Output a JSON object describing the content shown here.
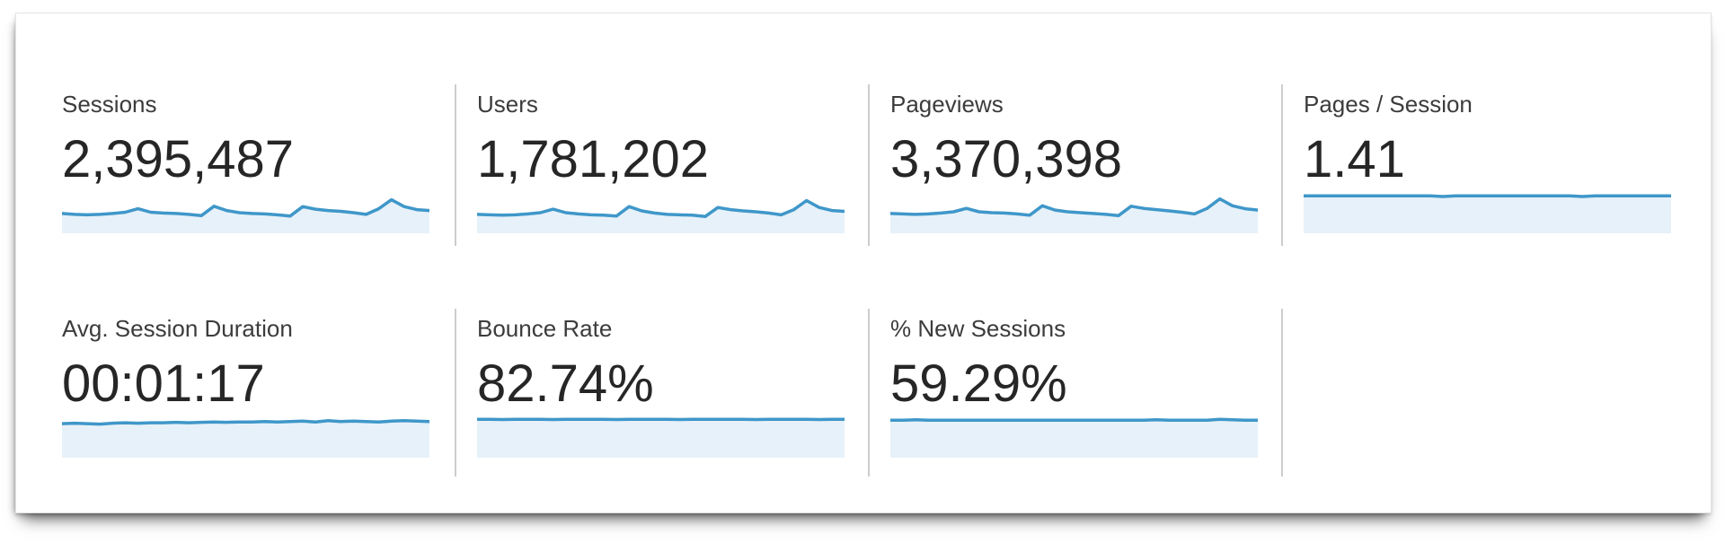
{
  "colors": {
    "spark_line": "#3f97c9",
    "spark_fill": "#e7f1f9",
    "divider": "#cdcdcd",
    "label_text": "#3c3c3c",
    "value_text": "#262626",
    "panel_bg": "#ffffff"
  },
  "metrics": [
    {
      "id": "sessions",
      "label": "Sessions",
      "value": "2,395,487"
    },
    {
      "id": "users",
      "label": "Users",
      "value": "1,781,202"
    },
    {
      "id": "pageviews",
      "label": "Pageviews",
      "value": "3,370,398"
    },
    {
      "id": "pages-per-session",
      "label": "Pages / Session",
      "value": "1.41"
    },
    {
      "id": "avg-session-duration",
      "label": "Avg. Session Duration",
      "value": "00:01:17"
    },
    {
      "id": "bounce-rate",
      "label": "Bounce Rate",
      "value": "82.74%"
    },
    {
      "id": "percent-new-sessions",
      "label": "% New Sessions",
      "value": "59.29%"
    }
  ],
  "chart_data": {
    "type": "area",
    "title": "",
    "xlabel": "",
    "ylabel": "",
    "legend": "none",
    "grid": false,
    "note": "Sparkline per metric; ~30 daily points; values are relative height 0-100 within each sparkline band (unlabeled axes in source image).",
    "series": [
      {
        "name": "Sessions",
        "values": [
          46,
          44,
          43,
          44,
          46,
          49,
          57,
          49,
          47,
          46,
          44,
          41,
          63,
          53,
          48,
          46,
          45,
          43,
          40,
          62,
          56,
          53,
          51,
          48,
          44,
          57,
          78,
          62,
          55,
          53
        ]
      },
      {
        "name": "Users",
        "values": [
          44,
          43,
          42,
          43,
          45,
          48,
          56,
          48,
          45,
          43,
          42,
          40,
          62,
          52,
          47,
          44,
          43,
          42,
          39,
          60,
          55,
          52,
          50,
          47,
          43,
          55,
          76,
          60,
          53,
          51
        ]
      },
      {
        "name": "Pageviews",
        "values": [
          46,
          45,
          44,
          45,
          47,
          50,
          58,
          50,
          48,
          47,
          45,
          42,
          64,
          54,
          50,
          48,
          46,
          44,
          41,
          63,
          58,
          55,
          52,
          49,
          45,
          58,
          80,
          64,
          57,
          54
        ]
      },
      {
        "name": "Pages / Session",
        "values": [
          87,
          87,
          87,
          87,
          87,
          87,
          87,
          87,
          87,
          87,
          87,
          85.5,
          87,
          87,
          87,
          87,
          87,
          87,
          87,
          87,
          87,
          87,
          85.5,
          87,
          87,
          87,
          87,
          87,
          87,
          87
        ]
      },
      {
        "name": "Avg. Session Duration",
        "values": [
          79,
          80,
          79,
          78,
          80,
          81,
          80,
          81,
          81,
          82,
          81,
          82,
          83,
          82,
          83,
          83,
          84,
          83,
          84,
          85,
          83,
          86,
          84,
          85,
          84,
          83,
          85,
          86,
          85,
          84
        ]
      },
      {
        "name": "Bounce Rate",
        "values": [
          89,
          89,
          88.5,
          89,
          89,
          89,
          88.5,
          89,
          89,
          89,
          89,
          88.5,
          89,
          89,
          89,
          89,
          88.5,
          89,
          89,
          89,
          89,
          89,
          88.5,
          89,
          89,
          89,
          89,
          88.5,
          89,
          89
        ]
      },
      {
        "name": "% New Sessions",
        "values": [
          87,
          87,
          88,
          87,
          87,
          87,
          87,
          87,
          87,
          87,
          87,
          87,
          87,
          87,
          87,
          87,
          87,
          87,
          87,
          87,
          87,
          88,
          87,
          87,
          87,
          87,
          89,
          88,
          87,
          87
        ]
      }
    ]
  }
}
